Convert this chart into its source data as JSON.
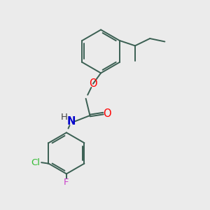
{
  "background_color": "#ebebeb",
  "bond_color": "#3a5f52",
  "atom_colors": {
    "O": "#ff0000",
    "N": "#0000cc",
    "Cl": "#33bb33",
    "F": "#cc44cc",
    "H": "#444444"
  },
  "font_size": 9.5,
  "figsize": [
    3.0,
    3.0
  ],
  "dpi": 100,
  "lw": 1.4
}
